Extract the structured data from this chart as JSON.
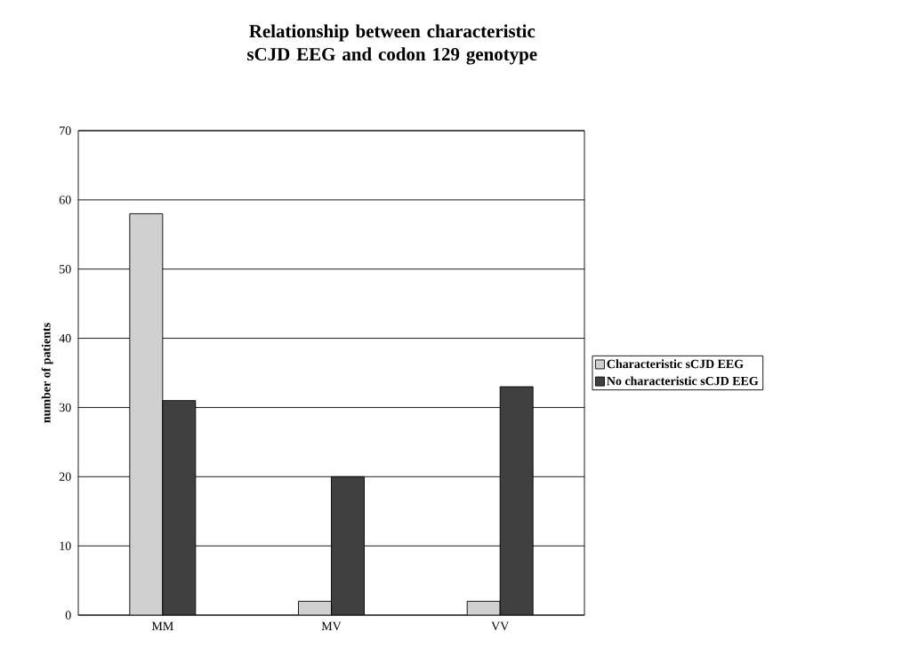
{
  "chart_data": {
    "type": "bar",
    "title": "Relationship between characteristic sCJD EEG and codon 129 genotype",
    "ylabel": "number of patients",
    "categories": [
      "MM",
      "MV",
      "VV"
    ],
    "series": [
      {
        "name": "Characteristic sCJD EEG",
        "color": "#d0d0d0",
        "values": [
          58,
          2,
          2
        ]
      },
      {
        "name": "No characteristic sCJD EEG",
        "color": "#404040",
        "values": [
          31,
          20,
          33
        ]
      }
    ],
    "ylim": [
      0,
      70
    ],
    "yticks": [
      0,
      10,
      20,
      30,
      40,
      50,
      60,
      70
    ],
    "grid": "y",
    "legend": "right"
  }
}
